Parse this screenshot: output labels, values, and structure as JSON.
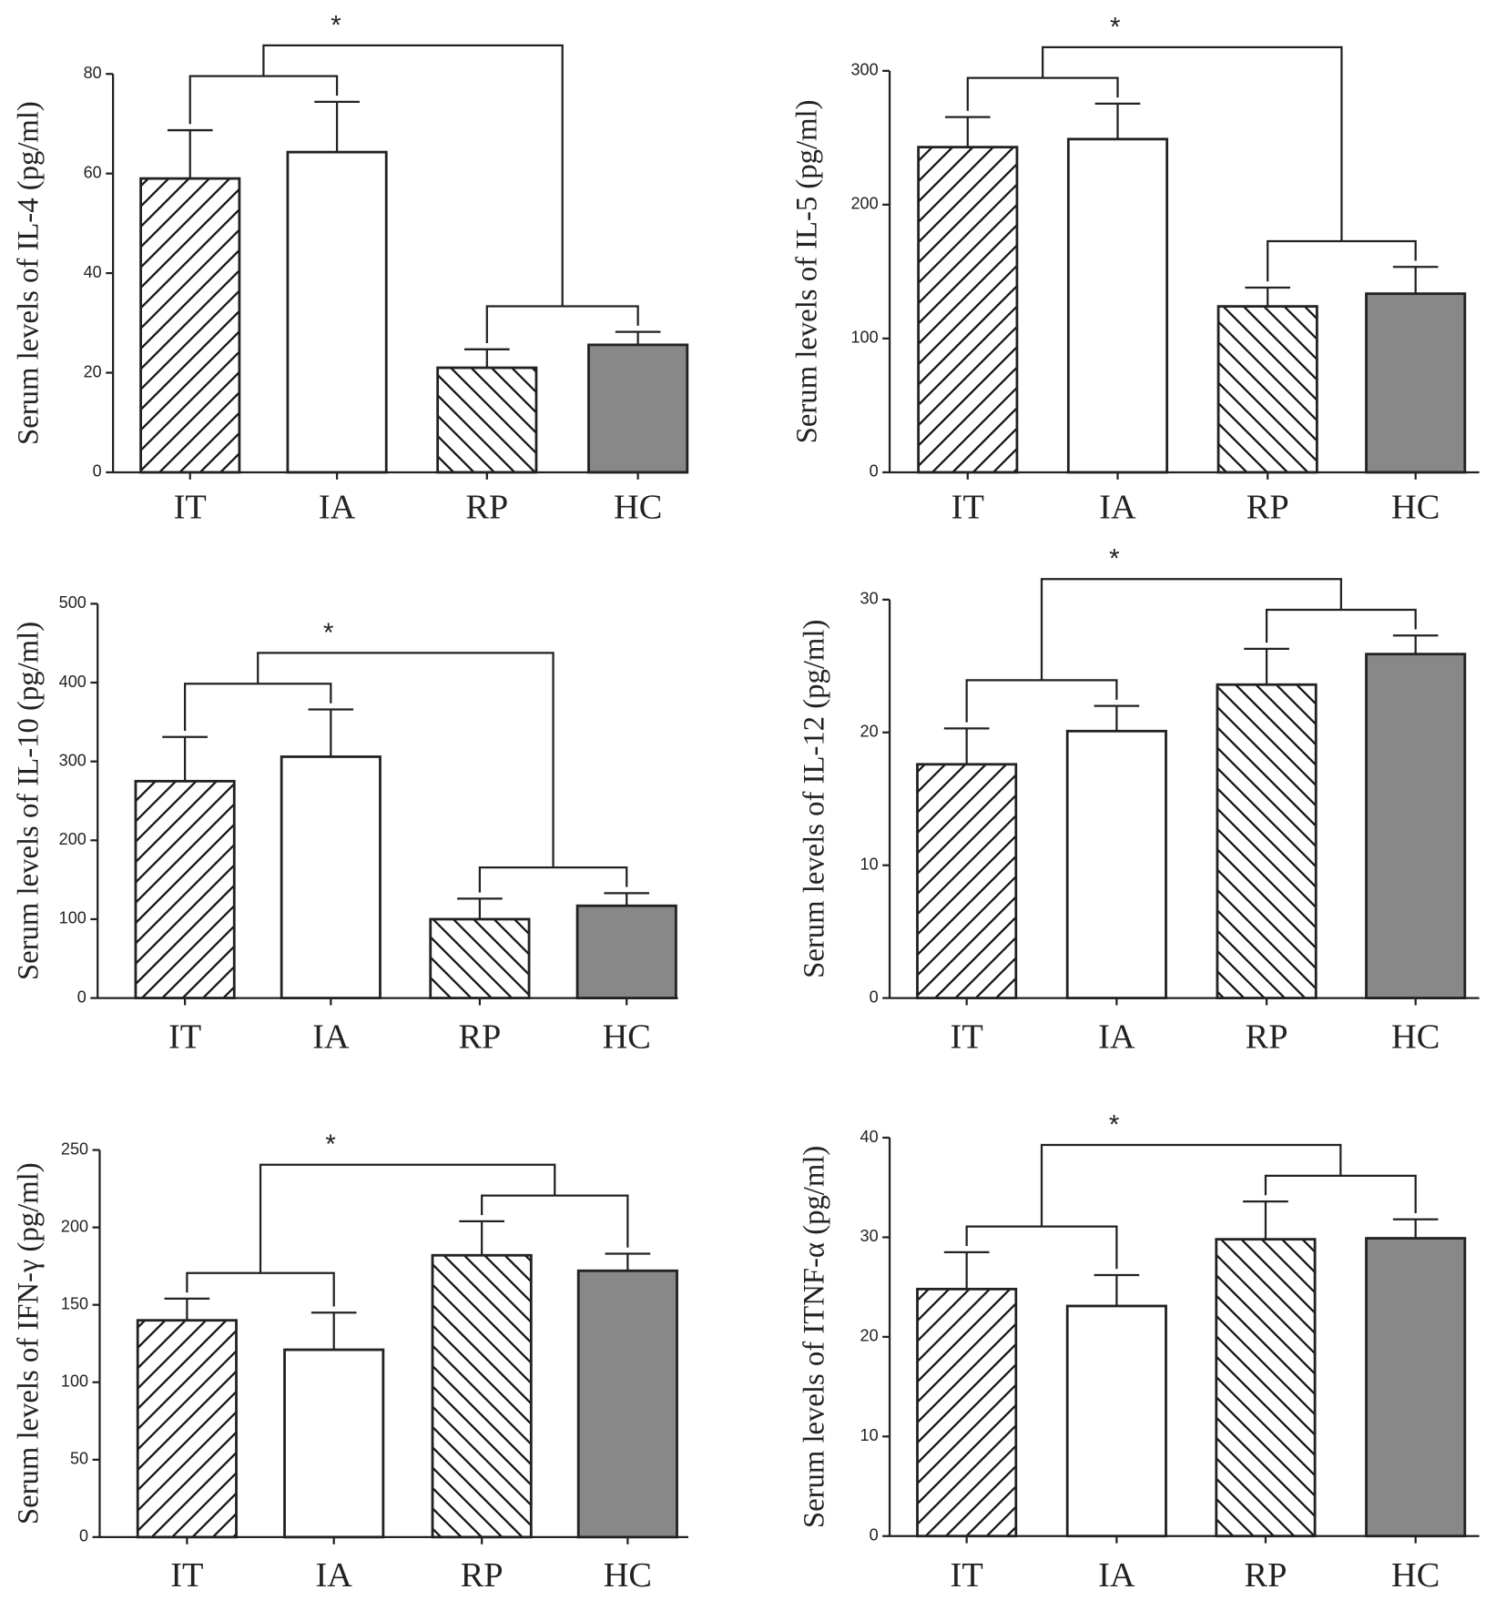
{
  "chart_data": [
    {
      "type": "bar",
      "y_label": "Serum levels of IL-4 (pg/ml)",
      "categories": [
        "IT",
        "IA",
        "RP",
        "HC"
      ],
      "values": [
        59,
        64.3,
        21,
        25.6
      ],
      "errors": [
        9.7,
        10.1,
        3.7,
        2.6
      ],
      "fills": [
        "hatch-right",
        "#ffffff",
        "hatch-left",
        "#888888"
      ],
      "ylim": [
        0,
        80
      ],
      "yticks": [
        0,
        20,
        40,
        60,
        80
      ],
      "annotation": "*"
    },
    {
      "type": "bar",
      "y_label": "Serum levels of IL-5 (pg/ml)",
      "categories": [
        "IT",
        "IA",
        "RP",
        "HC"
      ],
      "values": [
        243,
        249,
        124,
        133.5
      ],
      "errors": [
        22.5,
        26.5,
        14,
        20
      ],
      "fills": [
        "hatch-right",
        "#ffffff",
        "hatch-left",
        "#888888"
      ],
      "ylim": [
        0,
        300
      ],
      "yticks": [
        0,
        100,
        200,
        300
      ],
      "annotation": "*"
    },
    {
      "type": "bar",
      "y_label": "Serum levels of IL-10 (pg/ml)",
      "categories": [
        "IT",
        "IA",
        "RP",
        "HC"
      ],
      "values": [
        275,
        306,
        100,
        117
      ],
      "errors": [
        56,
        60,
        26,
        16
      ],
      "fills": [
        "hatch-right",
        "#ffffff",
        "hatch-left",
        "#888888"
      ],
      "ylim": [
        0,
        500
      ],
      "yticks": [
        0,
        100,
        200,
        300,
        400,
        500
      ],
      "annotation": "*"
    },
    {
      "type": "bar",
      "y_label": "Serum levels of IL-12 (pg/ml)",
      "categories": [
        "IT",
        "IA",
        "RP",
        "HC"
      ],
      "values": [
        17.6,
        20.1,
        23.6,
        25.9
      ],
      "errors": [
        2.7,
        1.9,
        2.7,
        1.4
      ],
      "fills": [
        "hatch-right",
        "#ffffff",
        "hatch-left",
        "#888888"
      ],
      "ylim": [
        0,
        30
      ],
      "yticks": [
        0,
        10,
        20,
        30
      ],
      "annotation": "*"
    },
    {
      "type": "bar",
      "y_label": "Serum levels of IFN-γ  (pg/ml)",
      "categories": [
        "IT",
        "IA",
        "RP",
        "HC"
      ],
      "values": [
        140,
        121,
        182,
        172
      ],
      "errors": [
        14,
        24,
        22,
        11
      ],
      "fills": [
        "hatch-right",
        "#ffffff",
        "hatch-left",
        "#888888"
      ],
      "ylim": [
        0,
        250
      ],
      "yticks": [
        0,
        50,
        100,
        150,
        200,
        250
      ],
      "annotation": "*"
    },
    {
      "type": "bar",
      "y_label": "Serum levels of ITNF-α  (pg/ml)",
      "categories": [
        "IT",
        "IA",
        "RP",
        "HC"
      ],
      "values": [
        24.8,
        23.1,
        29.8,
        29.9
      ],
      "errors": [
        3.7,
        3.1,
        3.8,
        1.9
      ],
      "fills": [
        "hatch-right",
        "#ffffff",
        "hatch-left",
        "#888888"
      ],
      "ylim": [
        0,
        40
      ],
      "yticks": [
        0,
        10,
        20,
        30,
        40
      ],
      "annotation": "*"
    }
  ]
}
